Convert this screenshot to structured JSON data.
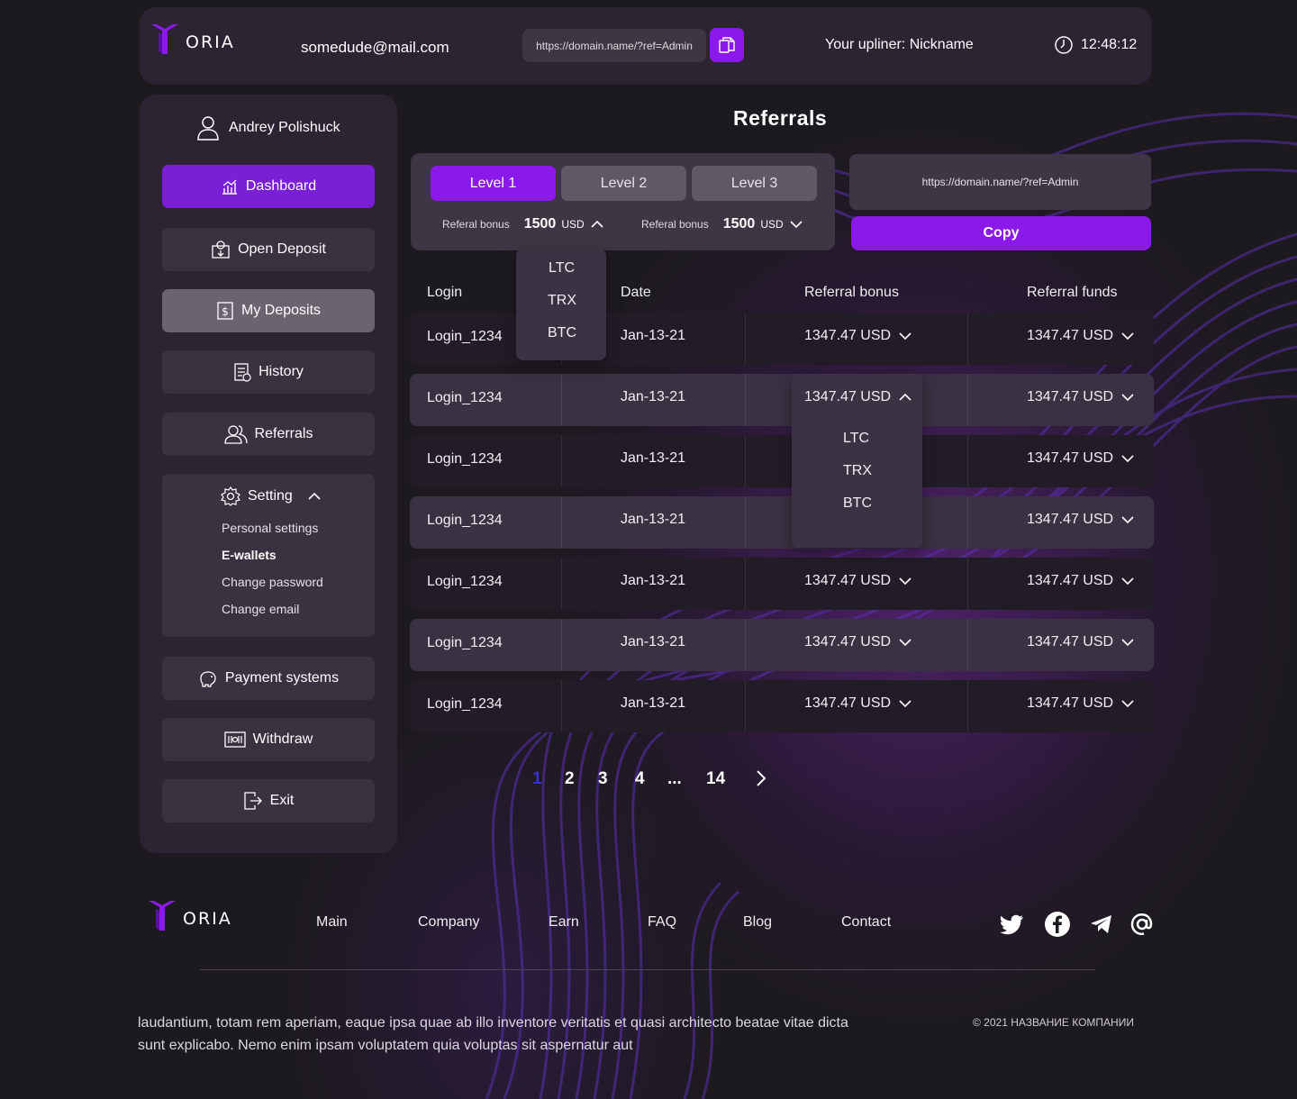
{
  "header": {
    "logo_text": "ORIA",
    "email": "somedude@mail.com",
    "ref_link": "https://domain.name/?ref=Admin",
    "upliner": "Your upliner: Nickname",
    "time": "12:48:12"
  },
  "sidebar": {
    "user_name": "Andrey Polishuck",
    "items": {
      "dashboard": "Dashboard",
      "open_deposit": "Open Deposit",
      "my_deposits": "My Deposits",
      "history": "History",
      "referrals": "Referrals",
      "setting": "Setting",
      "payment_systems": "Payment systems",
      "withdraw": "Withdraw",
      "exit": "Exit"
    },
    "settings_sub": [
      "Personal settings",
      "E-wallets",
      "Change password",
      "Change email"
    ]
  },
  "main": {
    "title": "Referrals",
    "levels": [
      "Level 1",
      "Level 2",
      "Level 3"
    ],
    "active_level": "Level 1",
    "bonus_label": "Referal bonus",
    "bonus_value": "1500",
    "bonus_unit": "USD",
    "ref_link": "https://domain.name/?ref=Admin",
    "copy_label": "Copy",
    "currency_options": [
      "LTC",
      "TRX",
      "BTC"
    ],
    "columns": [
      "Login",
      "Date",
      "Referral bonus",
      "Referral funds"
    ],
    "rows": [
      {
        "login": "Login_1234",
        "date": "Jan-13-21",
        "bonus": "1347.47 USD",
        "funds": "1347.47 USD"
      },
      {
        "login": "Login_1234",
        "date": "Jan-13-21",
        "bonus": "1347.47 USD",
        "funds": "1347.47 USD"
      },
      {
        "login": "Login_1234",
        "date": "Jan-13-21",
        "bonus": "",
        "funds": "1347.47 USD"
      },
      {
        "login": "Login_1234",
        "date": "Jan-13-21",
        "bonus": "",
        "funds": "1347.47 USD"
      },
      {
        "login": "Login_1234",
        "date": "Jan-13-21",
        "bonus": "1347.47 USD",
        "funds": "1347.47 USD"
      },
      {
        "login": "Login_1234",
        "date": "Jan-13-21",
        "bonus": "1347.47 USD",
        "funds": "1347.47 USD"
      },
      {
        "login": "Login_1234",
        "date": "Jan-13-21",
        "bonus": "1347.47 USD",
        "funds": "1347.47 USD"
      }
    ],
    "pagination": [
      "1",
      "2",
      "3",
      "4",
      "...",
      "14"
    ],
    "current_page": "1"
  },
  "footer": {
    "logo_text": "ORIA",
    "nav": [
      "Main",
      "Company",
      "Earn",
      "FAQ",
      "Blog",
      "Contact"
    ],
    "text": "laudantium, totam rem aperiam, eaque ipsa quae ab illo inventore veritatis et quasi architecto beatae vitae dicta sunt explicabo. Nemo enim ipsam voluptatem quia voluptas sit aspernatur aut",
    "copyright": "© 2021 НАЗВАНИЕ КОМПАНИИ",
    "social_icons": [
      "twitter-icon",
      "facebook-icon",
      "telegram-icon",
      "at-icon"
    ]
  },
  "colors": {
    "accent": "#8a19ea",
    "background": "#1d1a1f",
    "panel": "#2c2433"
  }
}
